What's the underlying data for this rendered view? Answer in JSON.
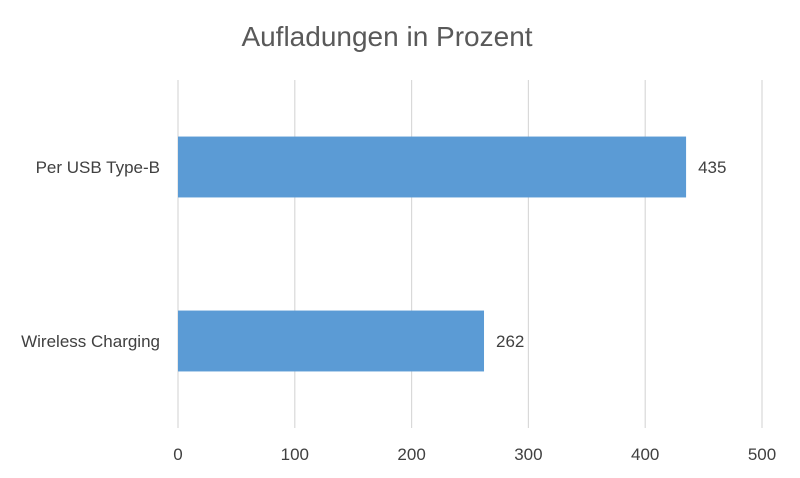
{
  "chart_data": {
    "type": "bar",
    "orientation": "horizontal",
    "title": "Aufladungen in Prozent",
    "categories": [
      "Per USB Type-B",
      "Wireless Charging"
    ],
    "values": [
      435,
      262
    ],
    "xlim": [
      0,
      500
    ],
    "ticks": [
      0,
      100,
      200,
      300,
      400,
      500
    ],
    "tick_labels": [
      "0",
      "100",
      "200",
      "300",
      "400",
      "500"
    ],
    "data_labels": [
      "435",
      "262"
    ],
    "grid": true,
    "legend": "none",
    "bar_color": "#5b9bd5",
    "grid_color": "#d9d9d9"
  }
}
